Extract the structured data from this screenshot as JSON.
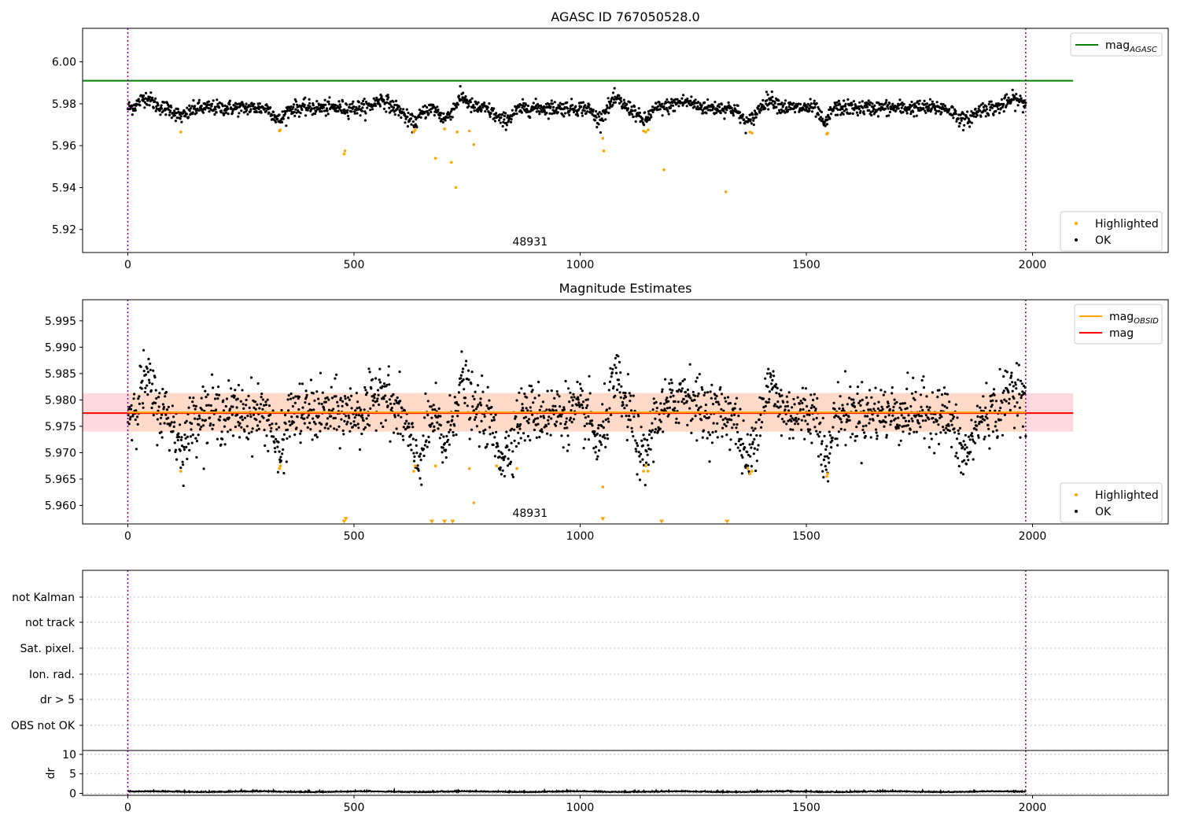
{
  "colors": {
    "ok": "#000000",
    "highlighted": "#ffa500",
    "mag_agasc": "#008000",
    "mag_obsid": "#ffa500",
    "mag": "#ff0000",
    "band_outer": "#ffc0cb",
    "band_inner": "#ffdab9",
    "obs_boundary": "#800080"
  },
  "chart_data": [
    {
      "type": "scatter",
      "title": "AGASC ID 767050528.0",
      "xlim": [
        -100,
        2300
      ],
      "ylim": [
        5.909,
        6.016
      ],
      "xticks": [
        0,
        500,
        1000,
        1500,
        2000
      ],
      "yticks": [
        5.92,
        5.94,
        5.96,
        5.98,
        6.0
      ],
      "ytick_labels": [
        "5.92",
        "5.94",
        "5.96",
        "5.98",
        "6.00"
      ],
      "obs_label": "48931",
      "obs_label_x": 990,
      "obs_boundaries": [
        0,
        1985
      ],
      "hlines": [
        {
          "name": "mag_AGASC",
          "y": 5.991,
          "xmin": -100,
          "xmax": 2090,
          "color": "#008000"
        }
      ],
      "ok_series": {
        "name": "OK",
        "n": 1986,
        "x_range": [
          0,
          1985
        ],
        "baseline": 5.978,
        "noise": 0.0018,
        "dips": [
          {
            "x": 120,
            "depth": 0.004,
            "width": 20
          },
          {
            "x": 335,
            "depth": 0.006,
            "width": 15
          },
          {
            "x": 630,
            "depth": 0.007,
            "width": 22
          },
          {
            "x": 700,
            "depth": 0.005,
            "width": 15
          },
          {
            "x": 830,
            "depth": 0.006,
            "width": 25
          },
          {
            "x": 1040,
            "depth": 0.005,
            "width": 15
          },
          {
            "x": 1140,
            "depth": 0.006,
            "width": 18
          },
          {
            "x": 1370,
            "depth": 0.007,
            "width": 20
          },
          {
            "x": 1540,
            "depth": 0.008,
            "width": 12
          },
          {
            "x": 1850,
            "depth": 0.006,
            "width": 25
          }
        ],
        "bumps": [
          {
            "x": 40,
            "height": 0.005,
            "width": 20
          },
          {
            "x": 560,
            "height": 0.004,
            "width": 20
          },
          {
            "x": 740,
            "height": 0.005,
            "width": 15
          },
          {
            "x": 1080,
            "height": 0.004,
            "width": 15
          },
          {
            "x": 1230,
            "height": 0.003,
            "width": 30
          },
          {
            "x": 1420,
            "height": 0.004,
            "width": 20
          },
          {
            "x": 1960,
            "height": 0.004,
            "width": 25
          }
        ]
      },
      "highlighted_points": {
        "name": "Highlighted",
        "x": [
          117,
          335,
          337,
          478,
          480,
          632,
          635,
          680,
          700,
          715,
          725,
          728,
          755,
          765,
          1050,
          1052,
          1140,
          1145,
          1150,
          1185,
          1322,
          1375,
          1380,
          1545,
          1547
        ],
        "y": [
          5.9665,
          5.967,
          5.9675,
          5.956,
          5.9575,
          5.9665,
          5.9675,
          5.954,
          5.968,
          5.952,
          5.94,
          5.9665,
          5.967,
          5.9605,
          5.9635,
          5.9575,
          5.967,
          5.9665,
          5.9675,
          5.9485,
          5.938,
          5.9665,
          5.966,
          5.9655,
          5.966
        ]
      },
      "legends": [
        {
          "position": "upper-right",
          "entries": [
            {
              "label_base": "mag",
              "label_sub": "AGASC",
              "kind": "line",
              "color": "#008000"
            }
          ]
        },
        {
          "position": "lower-right",
          "entries": [
            {
              "label": "Highlighted",
              "kind": "dot",
              "color": "#ffa500"
            },
            {
              "label": "OK",
              "kind": "dot",
              "color": "#000000"
            }
          ]
        }
      ]
    },
    {
      "type": "scatter",
      "title": "Magnitude Estimates",
      "xlim": [
        -100,
        2300
      ],
      "ylim": [
        5.9565,
        5.999
      ],
      "xticks": [
        0,
        500,
        1000,
        1500,
        2000
      ],
      "yticks": [
        5.96,
        5.965,
        5.97,
        5.975,
        5.98,
        5.985,
        5.99,
        5.995
      ],
      "ytick_labels": [
        "5.960",
        "5.965",
        "5.970",
        "5.975",
        "5.980",
        "5.985",
        "5.990",
        "5.995"
      ],
      "obs_label": "48931",
      "obs_label_x": 990,
      "obs_boundaries": [
        0,
        1985
      ],
      "bands": [
        {
          "y0": 5.974,
          "y1": 5.9813,
          "xmin": -100,
          "xmax": 2090,
          "color": "#ffc0cb"
        },
        {
          "y0": 5.974,
          "y1": 5.9813,
          "xmin": 0,
          "xmax": 1985,
          "color": "#ffdab9"
        }
      ],
      "hlines": [
        {
          "name": "mag",
          "y": 5.9775,
          "xmin": -100,
          "xmax": 2090,
          "color": "#ff0000"
        },
        {
          "name": "mag_OBSID",
          "y": 5.97765,
          "xmin": 0,
          "xmax": 1985,
          "color": "#ffa500"
        }
      ],
      "ok_series": {
        "name": "OK",
        "n": 1986,
        "x_range": [
          0,
          1985
        ],
        "baseline": 5.9775,
        "noise": 0.0028,
        "dips": [
          {
            "x": 120,
            "depth": 0.006,
            "width": 20
          },
          {
            "x": 335,
            "depth": 0.008,
            "width": 15
          },
          {
            "x": 640,
            "depth": 0.009,
            "width": 22
          },
          {
            "x": 700,
            "depth": 0.006,
            "width": 15
          },
          {
            "x": 830,
            "depth": 0.008,
            "width": 25
          },
          {
            "x": 1040,
            "depth": 0.006,
            "width": 15
          },
          {
            "x": 1140,
            "depth": 0.009,
            "width": 18
          },
          {
            "x": 1370,
            "depth": 0.009,
            "width": 20
          },
          {
            "x": 1545,
            "depth": 0.01,
            "width": 12
          },
          {
            "x": 1850,
            "depth": 0.008,
            "width": 25
          }
        ],
        "bumps": [
          {
            "x": 40,
            "height": 0.006,
            "width": 20
          },
          {
            "x": 560,
            "height": 0.005,
            "width": 20
          },
          {
            "x": 740,
            "height": 0.006,
            "width": 15
          },
          {
            "x": 1080,
            "height": 0.006,
            "width": 15
          },
          {
            "x": 1230,
            "height": 0.004,
            "width": 30
          },
          {
            "x": 1420,
            "height": 0.005,
            "width": 20
          },
          {
            "x": 1960,
            "height": 0.005,
            "width": 25
          }
        ]
      },
      "highlighted_points": {
        "name": "Highlighted",
        "x": [
          117,
          335,
          337,
          632,
          635,
          680,
          755,
          765,
          815,
          860,
          1050,
          1140,
          1145,
          1150,
          1370,
          1375,
          1380,
          1545,
          1547
        ],
        "y": [
          5.9665,
          5.967,
          5.9675,
          5.9665,
          5.9675,
          5.9675,
          5.967,
          5.9605,
          5.9675,
          5.967,
          5.9635,
          5.9665,
          5.9675,
          5.9665,
          5.967,
          5.966,
          5.9665,
          5.9655,
          5.966
        ]
      },
      "clipped_points": {
        "x": [
          478,
          482,
          672,
          700,
          718,
          1050,
          1180,
          1325
        ],
        "y": [
          5.957,
          5.9575,
          5.957,
          5.957,
          5.957,
          5.9575,
          5.957,
          5.957
        ]
      },
      "legends": [
        {
          "position": "upper-right",
          "entries": [
            {
              "label_base": "mag",
              "label_sub": "OBSID",
              "kind": "line",
              "color": "#ffa500"
            },
            {
              "label": "mag",
              "kind": "line",
              "color": "#ff0000"
            }
          ]
        },
        {
          "position": "lower-right",
          "entries": [
            {
              "label": "Highlighted",
              "kind": "dot",
              "color": "#ffa500"
            },
            {
              "label": "OK",
              "kind": "dot",
              "color": "#000000"
            }
          ]
        }
      ]
    },
    {
      "type": "table",
      "xlim": [
        -100,
        2300
      ],
      "flag_labels": [
        "not Kalman",
        "not track",
        "Sat. pixel.",
        "Ion. rad.",
        "dr > 5",
        "OBS not OK"
      ],
      "flag_counts": [
        0,
        0,
        0,
        0,
        0,
        0
      ],
      "obs_boundaries": [
        0,
        1985
      ]
    },
    {
      "type": "line",
      "ylabel": "dr",
      "xlim": [
        -100,
        2300
      ],
      "ylim": [
        -0.5,
        11
      ],
      "xticks": [
        0,
        500,
        1000,
        1500,
        2000
      ],
      "yticks": [
        0,
        5,
        10
      ],
      "ytick_labels": [
        "0",
        "5",
        "10"
      ],
      "obs_boundaries": [
        0,
        1985
      ],
      "dr_series": {
        "n": 1986,
        "x_range": [
          0,
          1985
        ],
        "mean": 0.35,
        "noise": 0.18
      }
    }
  ]
}
